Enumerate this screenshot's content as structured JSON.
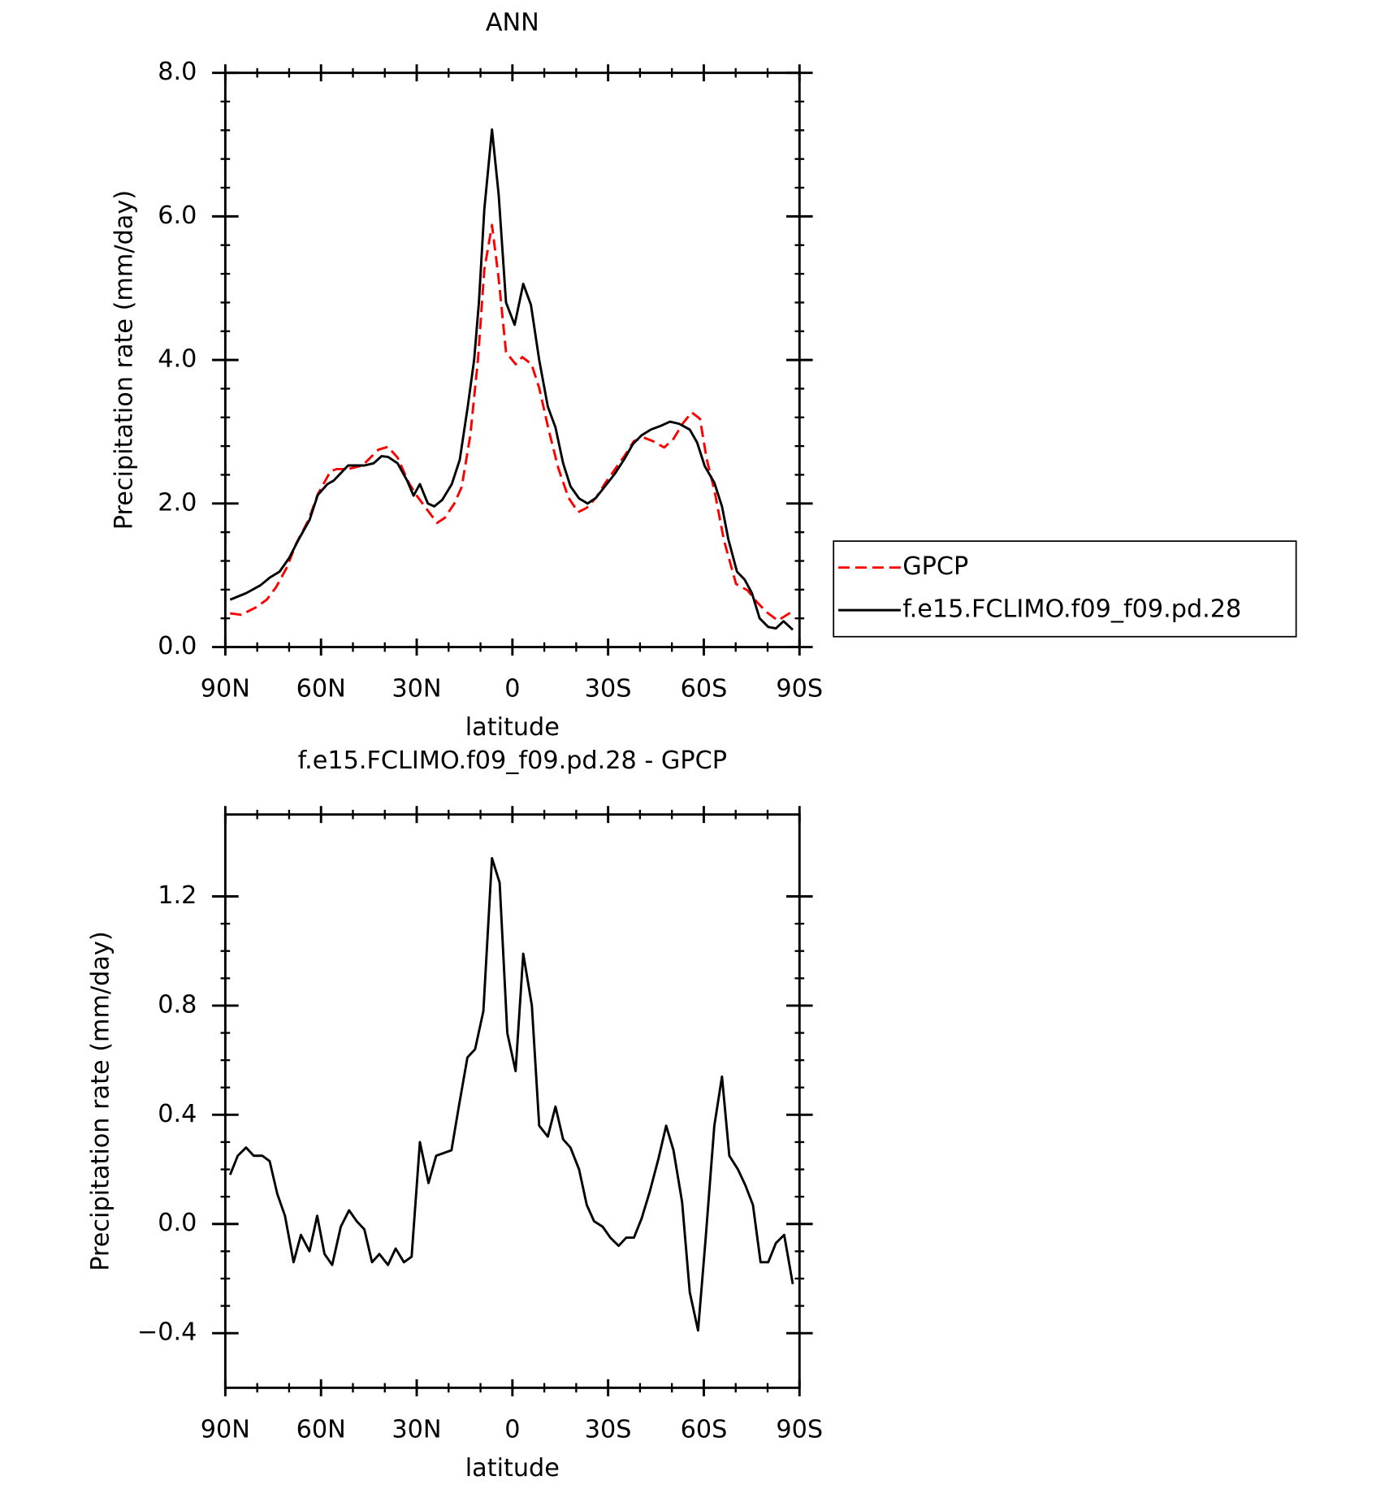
{
  "chart_data": [
    {
      "type": "line",
      "title": "ANN",
      "x_label": "latitude",
      "y_label": "Precipitation rate (mm/day)",
      "xlim": [
        90,
        -90
      ],
      "xticks": [
        {
          "value": 90,
          "label": "90N"
        },
        {
          "value": 60,
          "label": "60N"
        },
        {
          "value": 30,
          "label": "30N"
        },
        0,
        {
          "value": -30,
          "label": "30S"
        },
        {
          "value": -60,
          "label": "60S"
        },
        {
          "value": -90,
          "label": "90S"
        }
      ],
      "ylim": [
        0,
        8
      ],
      "yticks": [
        {
          "value": 0,
          "label": "0.0"
        },
        {
          "value": 2,
          "label": "2.0"
        },
        {
          "value": 4,
          "label": "4.0"
        },
        {
          "value": 6,
          "label": "6.0"
        },
        {
          "value": 8,
          "label": "8.0"
        }
      ],
      "legend": "outside right",
      "series": [
        {
          "name": "GPCP",
          "color": "#ff0000",
          "linestyle": "dashed",
          "x": [
            88.5,
            85,
            80.5,
            77,
            74,
            70.7,
            67.8,
            63.9,
            61,
            57,
            55,
            51.5,
            47,
            42,
            39,
            36,
            32.5,
            30,
            26.5,
            23.6,
            21.2,
            18.2,
            15.9,
            13.2,
            10.8,
            8.8,
            6.4,
            4.3,
            2,
            -1,
            -3.1,
            -6,
            -8.4,
            -11.4,
            -14.4,
            -17.6,
            -20.6,
            -23.3,
            -26.2,
            -29.2,
            -32.2,
            -35.1,
            -38.1,
            -41.1,
            -44,
            -47.6,
            -50.5,
            -53.5,
            -56.2,
            -58.8,
            -60.9,
            -63.3,
            -66.3,
            -70.1,
            -73.7,
            -76.6,
            -79.6,
            -83.2,
            -87.9
          ],
          "values": [
            0.47,
            0.45,
            0.55,
            0.66,
            0.84,
            1.11,
            1.44,
            1.77,
            2.13,
            2.45,
            2.48,
            2.48,
            2.53,
            2.75,
            2.79,
            2.64,
            2.29,
            2.11,
            1.9,
            1.73,
            1.8,
            2.0,
            2.23,
            2.95,
            4.0,
            5.26,
            5.88,
            5.13,
            4.11,
            3.94,
            4.04,
            3.94,
            3.61,
            3.02,
            2.49,
            2.08,
            1.88,
            1.94,
            2.08,
            2.29,
            2.48,
            2.66,
            2.87,
            2.92,
            2.87,
            2.78,
            2.9,
            3.12,
            3.27,
            3.18,
            2.62,
            2.19,
            1.49,
            0.88,
            0.79,
            0.63,
            0.49,
            0.37,
            0.5
          ]
        },
        {
          "name": "f.e15.FCLIMO.f09_f09.pd.28",
          "color": "#000000",
          "linestyle": "solid",
          "x": [
            88.5,
            83.5,
            79,
            76,
            73,
            70,
            67,
            63.6,
            61,
            58,
            56,
            51.5,
            46.4,
            43.5,
            41,
            39,
            36,
            33,
            31,
            29,
            26.5,
            24.5,
            22,
            19,
            16.5,
            14,
            12,
            10.5,
            8.8,
            6.4,
            4.3,
            2,
            -0.7,
            -3.4,
            -5.8,
            -8.4,
            -11.1,
            -13.5,
            -15.9,
            -18.2,
            -20.9,
            -23.6,
            -26.2,
            -29.2,
            -32.2,
            -35.1,
            -37.8,
            -40.5,
            -43.4,
            -46.4,
            -49.4,
            -52.3,
            -55.6,
            -57.9,
            -60.3,
            -63.3,
            -65.7,
            -67.7,
            -70.4,
            -72.8,
            -75.1,
            -77.5,
            -80.2,
            -82.6,
            -85,
            -87.9
          ],
          "values": [
            0.66,
            0.75,
            0.86,
            0.97,
            1.05,
            1.24,
            1.5,
            1.77,
            2.12,
            2.27,
            2.32,
            2.53,
            2.53,
            2.56,
            2.66,
            2.65,
            2.56,
            2.32,
            2.11,
            2.27,
            2.0,
            1.96,
            2.05,
            2.27,
            2.61,
            3.35,
            4.0,
            4.8,
            6.1,
            7.21,
            6.3,
            4.8,
            4.49,
            5.06,
            4.77,
            4.0,
            3.35,
            3.06,
            2.56,
            2.24,
            2.07,
            2.0,
            2.08,
            2.25,
            2.42,
            2.62,
            2.83,
            2.95,
            3.03,
            3.08,
            3.14,
            3.11,
            3.03,
            2.85,
            2.52,
            2.29,
            1.96,
            1.5,
            1.05,
            0.94,
            0.75,
            0.4,
            0.28,
            0.26,
            0.36,
            0.24
          ]
        }
      ]
    },
    {
      "type": "line",
      "title": "f.e15.FCLIMO.f09_f09.pd.28 - GPCP",
      "x_label": "latitude",
      "y_label": "Precipitation rate (mm/day)",
      "xlim": [
        90,
        -90
      ],
      "xticks": [
        {
          "value": 90,
          "label": "90N"
        },
        {
          "value": 60,
          "label": "60N"
        },
        {
          "value": 30,
          "label": "30N"
        },
        0,
        {
          "value": -30,
          "label": "30S"
        },
        {
          "value": -60,
          "label": "60S"
        },
        {
          "value": -90,
          "label": "90S"
        }
      ],
      "ylim": [
        -0.6,
        1.5
      ],
      "yticks": [
        {
          "value": -0.4,
          "label": "−0.4"
        },
        {
          "value": 0,
          "label": "0.0"
        },
        0.4,
        0.8,
        1.2
      ],
      "series": [
        {
          "color": "#000000",
          "linestyle": "solid",
          "x": [
            88.5,
            86.1,
            83.5,
            81.1,
            78.4,
            76.1,
            73.7,
            71.3,
            68.6,
            66.3,
            63.6,
            61.2,
            58.9,
            56.5,
            53.8,
            51.2,
            48.8,
            46.4,
            44,
            41.7,
            39,
            36.6,
            34,
            31.6,
            29,
            26.3,
            23.9,
            21.5,
            19.1,
            16.8,
            14.1,
            11.7,
            9.1,
            6.4,
            4,
            1.6,
            -1,
            -3.4,
            -6.1,
            -8.4,
            -11.1,
            -13.5,
            -15.9,
            -18.2,
            -20.9,
            -23.3,
            -25.6,
            -28.3,
            -30.7,
            -33.3,
            -35.7,
            -38.1,
            -40.5,
            -43.1,
            -45.8,
            -48.2,
            -50.5,
            -53.2,
            -55.6,
            -58.2,
            -60.6,
            -63.3,
            -65.7,
            -68,
            -70.7,
            -73.1,
            -75.4,
            -77.8,
            -80.2,
            -82.6,
            -85.2,
            -87.9
          ],
          "values": [
            0.18,
            0.25,
            0.28,
            0.25,
            0.25,
            0.23,
            0.11,
            0.03,
            -0.14,
            -0.04,
            -0.1,
            0.03,
            -0.11,
            -0.15,
            -0.01,
            0.05,
            0.01,
            -0.02,
            -0.14,
            -0.11,
            -0.15,
            -0.09,
            -0.14,
            -0.12,
            0.3,
            0.15,
            0.25,
            0.26,
            0.27,
            0.43,
            0.61,
            0.64,
            0.78,
            1.34,
            1.25,
            0.7,
            0.56,
            0.99,
            0.8,
            0.36,
            0.32,
            0.43,
            0.31,
            0.28,
            0.2,
            0.07,
            0.01,
            -0.01,
            -0.05,
            -0.08,
            -0.05,
            -0.05,
            0.02,
            0.12,
            0.24,
            0.36,
            0.27,
            0.08,
            -0.25,
            -0.39,
            -0.05,
            0.36,
            0.54,
            0.25,
            0.2,
            0.14,
            0.07,
            -0.14,
            -0.14,
            -0.07,
            -0.04,
            -0.22
          ]
        }
      ]
    }
  ]
}
